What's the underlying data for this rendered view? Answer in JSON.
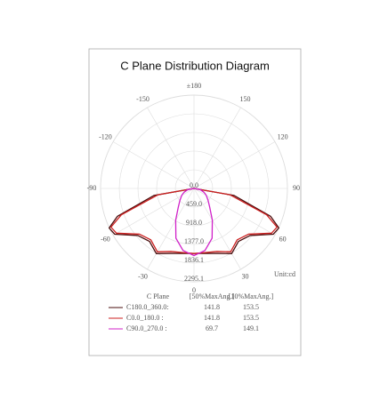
{
  "chart_data": {
    "type": "polar",
    "title": "C Plane Distribution Diagram",
    "unit_label": "Unit:cd",
    "rlim": [
      0,
      2295.1
    ],
    "rticks": [
      {
        "value": 0,
        "label": "0.0"
      },
      {
        "value": 459,
        "label": "459.0"
      },
      {
        "value": 918,
        "label": "918.0"
      },
      {
        "value": 1377,
        "label": "1377.0"
      },
      {
        "value": 1836.1,
        "label": "1836.1"
      },
      {
        "value": 2295.1,
        "label": "2295.1"
      }
    ],
    "thetaticks": [
      {
        "value": 180,
        "label": "±180"
      },
      150,
      120,
      90,
      60,
      30,
      0,
      -30,
      -60,
      -90,
      -120,
      -150
    ],
    "x": [
      -90,
      -80,
      -70,
      -65,
      -60,
      -50,
      -40,
      -30,
      -20,
      -10,
      0,
      10,
      20,
      30,
      40,
      50,
      60,
      65,
      70,
      80,
      90
    ],
    "legend_title": "C Plane",
    "legend_columns": [
      "[50%MaxAng.]",
      "[10%MaxAng.]"
    ],
    "series": [
      {
        "name": "C180.0_360.0:",
        "color": "#4a0c0c",
        "half_angle_50": 141.8,
        "half_angle_10": 153.5,
        "values": [
          0,
          1000,
          2000,
          2300,
          2250,
          1800,
          1700,
          1850,
          1700,
          1620,
          1600,
          1620,
          1700,
          1850,
          1700,
          1800,
          2250,
          2300,
          2000,
          1000,
          0
        ]
      },
      {
        "name": "C0.0_180.0 :",
        "color": "#cc1f1f",
        "half_angle_50": 141.8,
        "half_angle_10": 153.5,
        "values": [
          0,
          900,
          1900,
          2250,
          2200,
          1750,
          1650,
          1800,
          1650,
          1600,
          1600,
          1600,
          1650,
          1800,
          1650,
          1750,
          2200,
          2250,
          1900,
          900,
          0
        ]
      },
      {
        "name": "C90.0_270.0 :",
        "color": "#d020c8",
        "half_angle_50": 69.7,
        "half_angle_10": 149.1,
        "values": [
          0,
          150,
          250,
          300,
          350,
          450,
          600,
          900,
          1300,
          1550,
          1650,
          1550,
          1300,
          900,
          600,
          450,
          350,
          300,
          250,
          150,
          0
        ]
      }
    ]
  }
}
